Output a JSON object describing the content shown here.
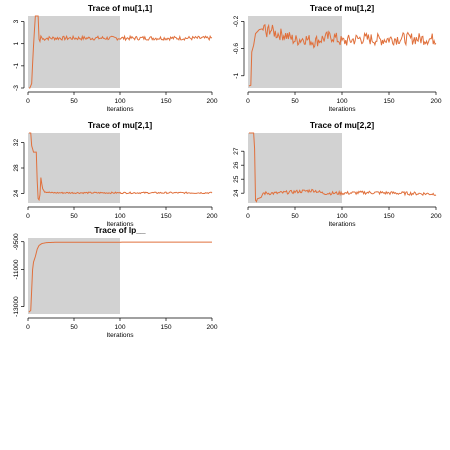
{
  "colors": {
    "trace": "#E0703C",
    "warmup": "#D2D2D2",
    "axis": "#000000",
    "background": "#FFFFFF"
  },
  "chart_data": [
    {
      "type": "line",
      "title": "Trace of  mu[1,1]",
      "xlabel": "Iterations",
      "warmup_end": 100,
      "xlim": [
        0,
        200
      ],
      "ylim": [
        -3,
        3.5
      ],
      "xticks": [
        0,
        50,
        100,
        150,
        200
      ],
      "yticks": [
        -3,
        -1,
        1,
        3
      ],
      "series": [
        {
          "anchors": [
            [
              1,
              -3
            ],
            [
              2,
              -3
            ],
            [
              4,
              -2.6
            ],
            [
              5,
              -0.8
            ],
            [
              6,
              0.8
            ],
            [
              7,
              2.2
            ],
            [
              8,
              3.5
            ],
            [
              11,
              3.5
            ],
            [
              12,
              1.4
            ],
            [
              13,
              1.2
            ],
            [
              14,
              1.7
            ],
            [
              16,
              1.4
            ],
            [
              20,
              1.5
            ],
            [
              200,
              1.5
            ]
          ],
          "noise": 0.18
        }
      ]
    },
    {
      "type": "line",
      "title": "Trace of  mu[1,2]",
      "xlabel": "Iterations",
      "warmup_end": 100,
      "xlim": [
        0,
        200
      ],
      "ylim": [
        -1.18,
        -0.12
      ],
      "xticks": [
        0,
        50,
        100,
        150,
        200
      ],
      "yticks": [
        -1.0,
        -0.6,
        -0.2
      ],
      "series": [
        {
          "anchors": [
            [
              1,
              -1.15
            ],
            [
              3,
              -1.14
            ],
            [
              4,
              -0.65
            ],
            [
              6,
              -0.55
            ],
            [
              8,
              -0.38
            ],
            [
              12,
              -0.32
            ],
            [
              18,
              -0.3
            ],
            [
              20,
              -0.42
            ],
            [
              22,
              -0.3
            ],
            [
              30,
              -0.38
            ],
            [
              40,
              -0.4
            ],
            [
              50,
              -0.48
            ],
            [
              60,
              -0.45
            ],
            [
              70,
              -0.5
            ],
            [
              80,
              -0.45
            ],
            [
              90,
              -0.42
            ],
            [
              100,
              -0.5
            ],
            [
              120,
              -0.45
            ],
            [
              140,
              -0.47
            ],
            [
              160,
              -0.45
            ],
            [
              200,
              -0.46
            ]
          ],
          "noise": 0.09
        }
      ]
    },
    {
      "type": "line",
      "title": "Trace of  mu[2,1]",
      "xlabel": "Iterations",
      "warmup_end": 100,
      "xlim": [
        0,
        200
      ],
      "ylim": [
        22.5,
        33.5
      ],
      "xticks": [
        0,
        50,
        100,
        150,
        200
      ],
      "yticks": [
        24,
        28,
        32
      ],
      "series": [
        {
          "anchors": [
            [
              1,
              33.5
            ],
            [
              3,
              33.5
            ],
            [
              4,
              31.5
            ],
            [
              6,
              30.5
            ],
            [
              9,
              30.5
            ],
            [
              10,
              26
            ],
            [
              11,
              23.2
            ],
            [
              12,
              23
            ],
            [
              13,
              23.8
            ],
            [
              14,
              26.5
            ],
            [
              15,
              25.5
            ],
            [
              16,
              24.8
            ],
            [
              18,
              24.3
            ],
            [
              25,
              24.1
            ],
            [
              200,
              24.1
            ]
          ],
          "noise": 0.12
        }
      ]
    },
    {
      "type": "line",
      "title": "Trace of  mu[2,2]",
      "xlabel": "Iterations",
      "warmup_end": 100,
      "xlim": [
        0,
        200
      ],
      "ylim": [
        23.3,
        28.3
      ],
      "xticks": [
        0,
        50,
        100,
        150,
        200
      ],
      "yticks": [
        24,
        25,
        26,
        27
      ],
      "series": [
        {
          "anchors": [
            [
              1,
              28.3
            ],
            [
              6,
              28.3
            ],
            [
              7,
              27.2
            ],
            [
              8,
              23.5
            ],
            [
              9,
              23.4
            ],
            [
              10,
              23.6
            ],
            [
              14,
              23.7
            ],
            [
              16,
              24.0
            ],
            [
              30,
              24.0
            ],
            [
              50,
              24.1
            ],
            [
              70,
              24.2
            ],
            [
              80,
              24.0
            ],
            [
              100,
              24.0
            ],
            [
              130,
              24.05
            ],
            [
              160,
              24.0
            ],
            [
              200,
              23.95
            ]
          ],
          "noise": 0.12
        }
      ]
    },
    {
      "type": "line",
      "title": "Trace of  lp__",
      "xlabel": "Iterations",
      "warmup_end": 100,
      "xlim": [
        0,
        200
      ],
      "ylim": [
        -13400,
        -9300
      ],
      "xticks": [
        0,
        50,
        100,
        150,
        200
      ],
      "yticks": [
        -13000,
        -11000,
        -9500
      ],
      "series": [
        {
          "anchors": [
            [
              1,
              -13300
            ],
            [
              3,
              -13200
            ],
            [
              5,
              -11000
            ],
            [
              6,
              -10600
            ],
            [
              8,
              -10300
            ],
            [
              10,
              -9900
            ],
            [
              12,
              -9700
            ],
            [
              15,
              -9600
            ],
            [
              20,
              -9550
            ],
            [
              30,
              -9530
            ],
            [
              200,
              -9520
            ]
          ],
          "noise": 0
        }
      ]
    }
  ]
}
